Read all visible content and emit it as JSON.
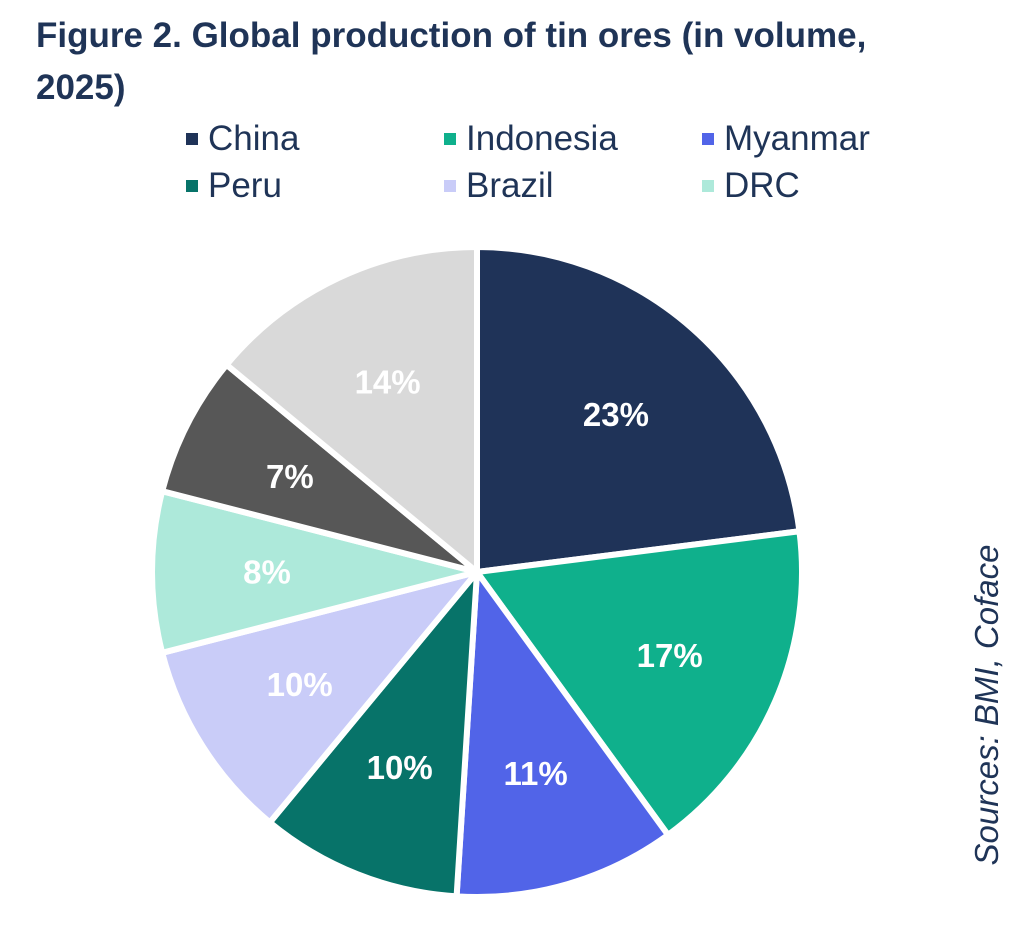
{
  "figure": {
    "title": "Figure 2. Global production of tin ores (in volume, 2025)",
    "source": "Sources: BMI, Coface"
  },
  "legend": {
    "items": [
      {
        "label": "China",
        "color": "#1f3358"
      },
      {
        "label": "Indonesia",
        "color": "#0fb08c"
      },
      {
        "label": "Myanmar",
        "color": "#5164e8"
      },
      {
        "label": "Peru",
        "color": "#077369"
      },
      {
        "label": "Brazil",
        "color": "#c9ccf8"
      },
      {
        "label": "DRC",
        "color": "#ade9da"
      }
    ]
  },
  "chart_data": {
    "type": "pie",
    "title": "Figure 2. Global production of tin ores (in volume, 2025)",
    "start": "12 o'clock",
    "direction": "clockwise",
    "slices": [
      {
        "name": "China",
        "value": 23,
        "label": "23%",
        "color": "#1f3358"
      },
      {
        "name": "Indonesia",
        "value": 17,
        "label": "17%",
        "color": "#0fb08c"
      },
      {
        "name": "Myanmar",
        "value": 11,
        "label": "11%",
        "color": "#5164e8"
      },
      {
        "name": "Peru",
        "value": 10,
        "label": "10%",
        "color": "#077369"
      },
      {
        "name": "Brazil",
        "value": 10,
        "label": "10%",
        "color": "#c9ccf8"
      },
      {
        "name": "DRC",
        "value": 8,
        "label": "8%",
        "color": "#ade9da"
      },
      {
        "name": "",
        "value": 7,
        "label": "7%",
        "color": "#575757"
      },
      {
        "name": "",
        "value": 14,
        "label": "14%",
        "color": "#d9d9d9"
      }
    ],
    "legend_position": "top",
    "source": "Sources: BMI, Coface"
  }
}
